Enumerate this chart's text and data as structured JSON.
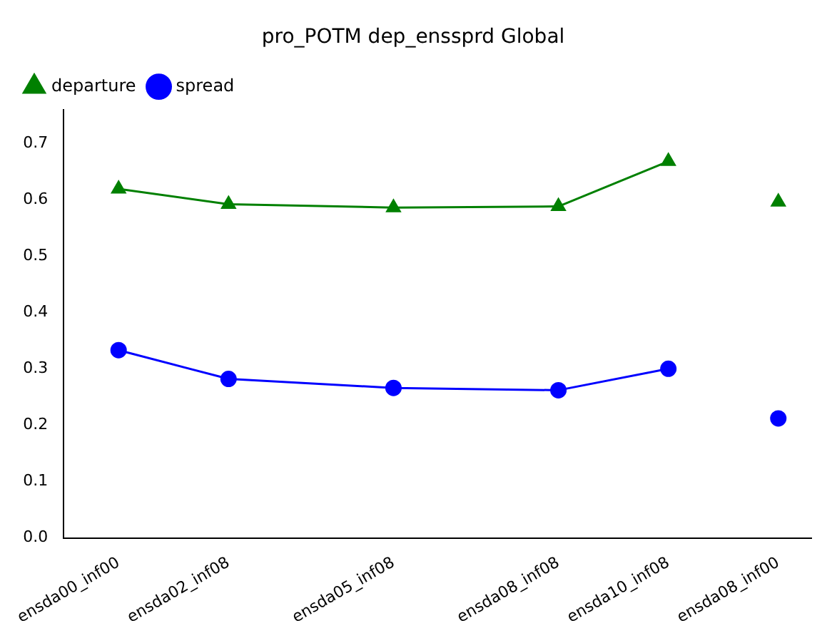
{
  "chart_data": {
    "type": "line",
    "title": "pro_POTM dep_enssprd Global",
    "categories": [
      "ensda00_inf00",
      null,
      "ensda02_inf08",
      null,
      null,
      "ensda05_inf08",
      null,
      null,
      "ensda08_inf08",
      null,
      "ensda10_inf08",
      null,
      "ensda08_inf00"
    ],
    "ylim": [
      0,
      0.76
    ],
    "yticks": [
      {
        "value": 0,
        "label": "0.0"
      },
      0.1,
      0.2,
      0.3,
      0.4,
      0.5,
      0.6,
      0.7
    ],
    "grid": false,
    "legend": "top left",
    "series": [
      {
        "name": "departure",
        "color": "#008000",
        "marker": "triangle",
        "values": [
          0.619,
          null,
          0.592,
          null,
          null,
          0.586,
          null,
          null,
          0.588,
          null,
          0.668,
          null,
          null
        ]
      },
      {
        "name": "spread",
        "color": "#0000ff",
        "marker": "circle",
        "values": [
          0.333,
          null,
          0.282,
          null,
          null,
          0.266,
          null,
          null,
          0.262,
          null,
          0.3,
          null,
          null
        ]
      },
      {
        "type": "scatter",
        "color": "#008000",
        "marker": "triangle",
        "values": [
          null,
          null,
          null,
          null,
          null,
          null,
          null,
          null,
          null,
          null,
          null,
          null,
          0.596
        ]
      },
      {
        "type": "scatter",
        "color": "#0000ff",
        "marker": "circle",
        "values": [
          null,
          null,
          null,
          null,
          null,
          null,
          null,
          null,
          null,
          null,
          null,
          null,
          0.212
        ]
      }
    ]
  }
}
